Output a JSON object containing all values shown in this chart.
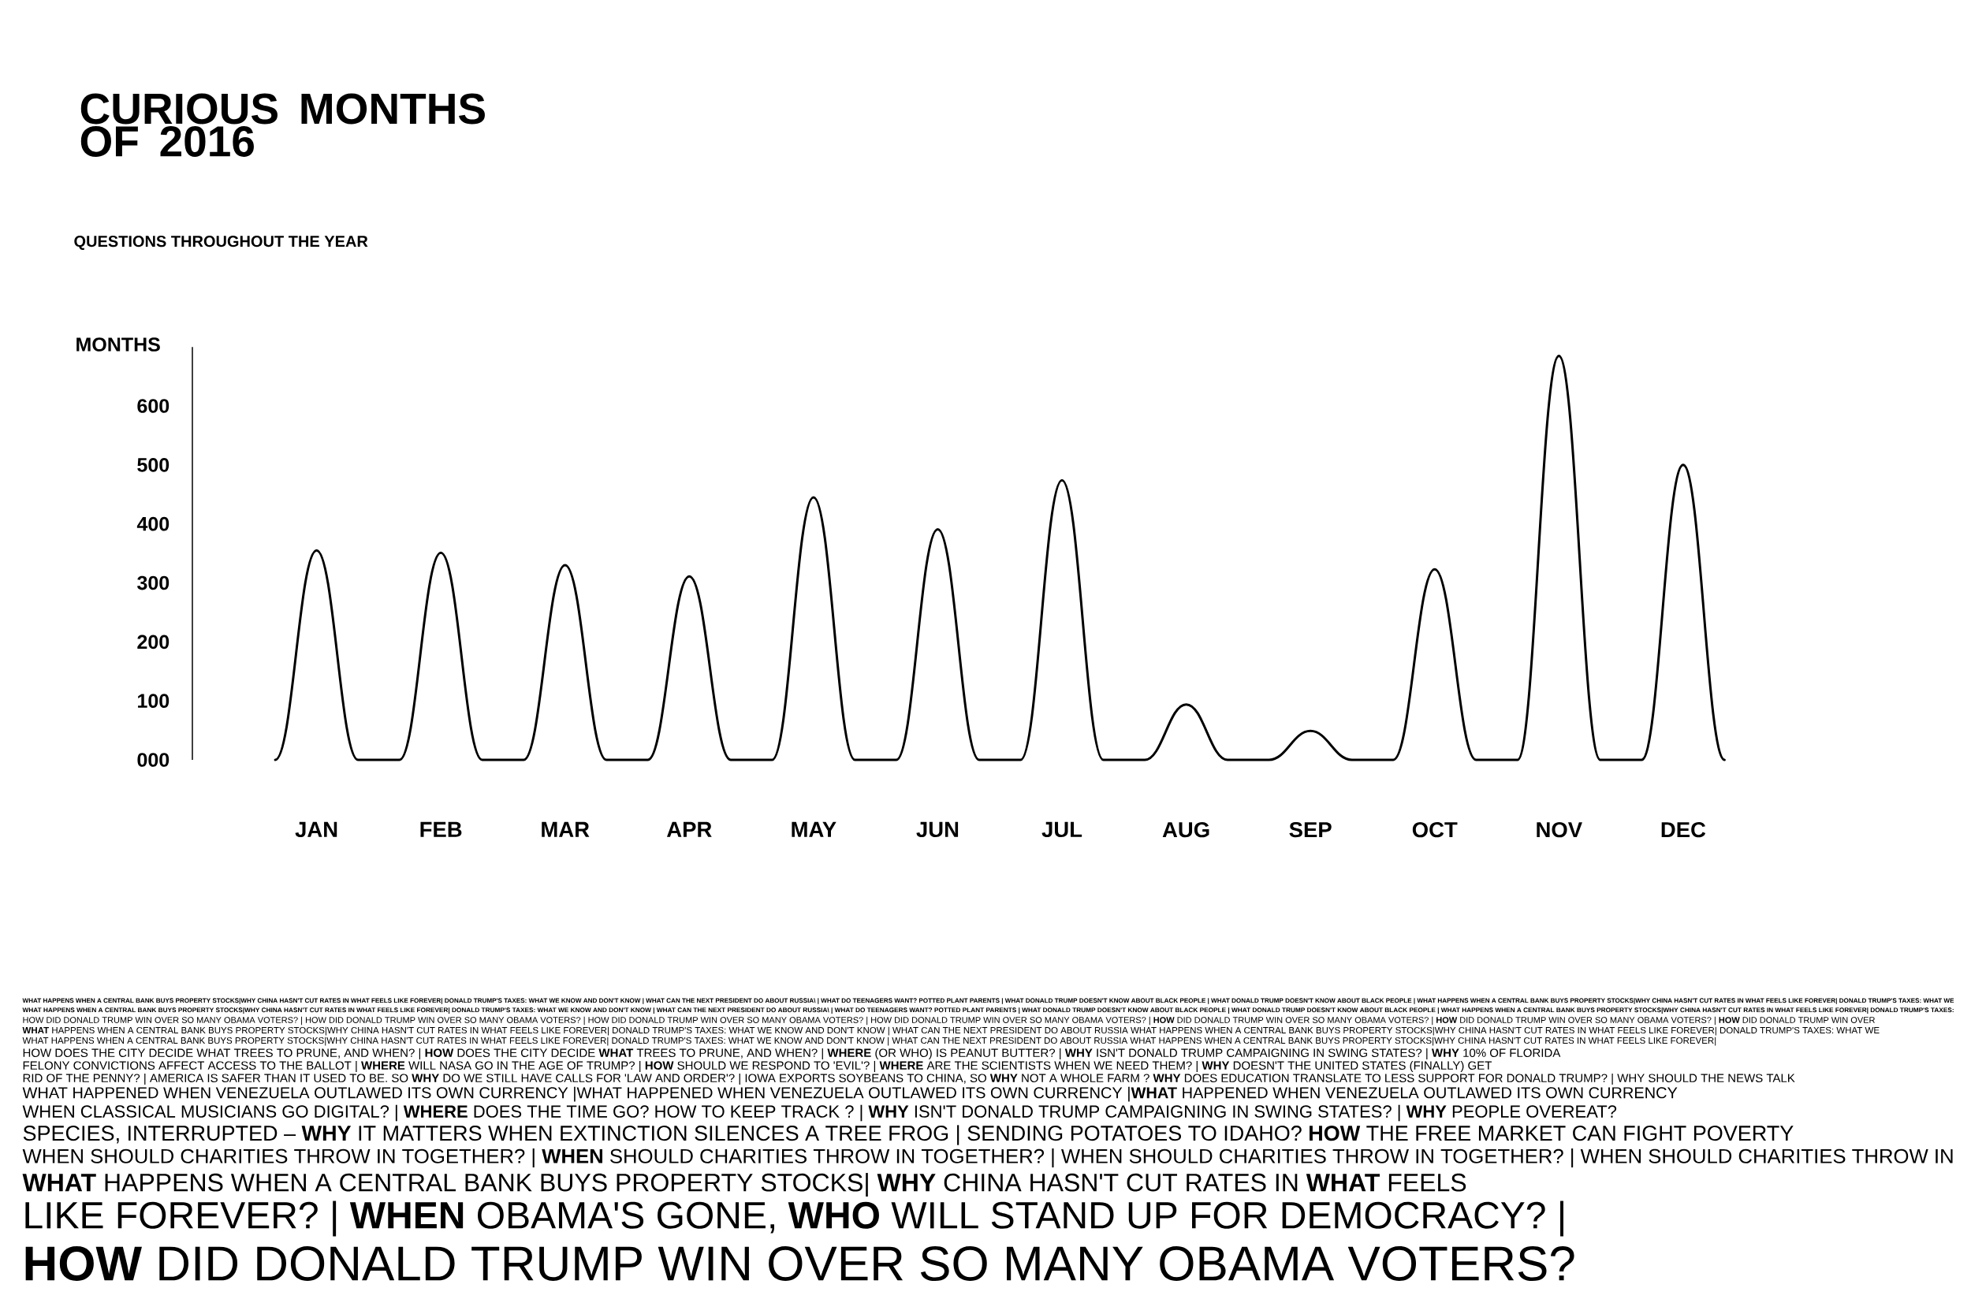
{
  "chart_data": {
    "type": "line",
    "title": "CURIOUS MONTHS OF 2016",
    "subtitle": "QUESTIONS THROUGHOUT THE YEAR",
    "ylabel": "MONTHS",
    "categories": [
      null,
      "JAN",
      null,
      null,
      "FEB",
      null,
      null,
      "MAR",
      null,
      null,
      "APR",
      null,
      null,
      "MAY",
      null,
      null,
      "JUN",
      null,
      null,
      "JUL",
      null,
      null,
      "AUG",
      null,
      null,
      "SEP",
      null,
      null,
      "OCT",
      null,
      null,
      "NOV",
      null,
      null,
      "DEC",
      null
    ],
    "series": [
      {
        "color": "#000000",
        "values": [
          0,
          355,
          0,
          0,
          351,
          0,
          0,
          330,
          0,
          0,
          311,
          0,
          0,
          445,
          0,
          0,
          391,
          0,
          0,
          474,
          0,
          0,
          94,
          0,
          0,
          49,
          0,
          0,
          323,
          0,
          0,
          685,
          0,
          0,
          500,
          0
        ]
      }
    ],
    "ylim": [
      0,
      700
    ],
    "yticks": [
      {
        "value": 0,
        "label": "000"
      },
      100,
      200,
      300,
      400,
      500,
      600
    ],
    "annotations": [
      "**WHAT HAPPENS WHEN A CENTRAL BANK BUYS PROPERTY STOCKS|WHY CHINA HASN'T CUT RATES IN WHAT FEELS LIKE FOREVER| DONALD TRUMP'S TAXES: WHAT WE KNOW AND DON'T KNOW | WHAT CAN THE NEXT PRESIDENT DO ABOUT RUSSIA\\ | WHAT DO TEENAGERS WANT? POTTED PLANT PARENTS | WHAT DONALD TRUMP DOESN'T KNOW ABOUT BLACK PEOPLE | WHAT DONALD TRUMP DOESN'T KNOW ABOUT BLACK PEOPLE | WHAT HAPPENS WHEN A CENTRAL BANK BUYS PROPERTY STOCKS|WHY CHINA HASN'T CUT RATES IN WHAT FEELS LIKE FOREVER| DONALD TRUMP'S TAXES: WHAT WE**",
      "**WHAT HAPPENS WHEN A CENTRAL BANK BUYS PROPERTY STOCKS|WHY CHINA HASN'T CUT RATES IN WHAT FEELS LIKE FOREVER| DONALD TRUMP'S TAXES: WHAT WE KNOW AND DON'T KNOW | WHAT CAN THE NEXT PRESIDENT DO ABOUT RUSSIA\\ | WHAT DO TEENAGERS WANT? POTTED PLANT PARENTS | WHAT DONALD TRUMP DOESN'T KNOW ABOUT BLACK PEOPLE | WHAT DONALD TRUMP DOESN'T KNOW ABOUT BLACK PEOPLE | WHAT HAPPENS WHEN A CENTRAL BANK BUYS PROPERTY STOCKS|WHY CHINA HASN'T CUT RATES IN WHAT FEELS LIKE FOREVER| DONALD TRUMP'S TAXES:**",
      "HOW DID DONALD TRUMP WIN OVER SO MANY OBAMA VOTERS? | HOW DID DONALD TRUMP WIN OVER SO MANY OBAMA VOTERS? | HOW DID DONALD TRUMP WIN OVER SO MANY OBAMA VOTERS? | HOW DID DONALD TRUMP WIN OVER SO MANY OBAMA VOTERS? | **HOW** DID DONALD TRUMP WIN OVER SO MANY OBAMA VOTERS? | **HOW** DID DONALD TRUMP WIN OVER SO MANY OBAMA VOTERS? | **HOW** DID DONALD TRUMP WIN OVER",
      "**WHAT** HAPPENS WHEN A CENTRAL BANK BUYS PROPERTY STOCKS|WHY CHINA HASN'T CUT RATES IN WHAT FEELS LIKE FOREVER| DONALD TRUMP'S TAXES: WHAT WE KNOW AND DON'T KNOW | WHAT CAN THE NEXT PRESIDENT DO ABOUT RUSSIA WHAT HAPPENS WHEN A CENTRAL BANK BUYS PROPERTY STOCKS|WHY CHINA HASN'T CUT RATES IN WHAT FEELS LIKE FOREVER| DONALD TRUMP'S TAXES: WHAT WE",
      "WHAT HAPPENS WHEN A CENTRAL BANK BUYS PROPERTY STOCKS|WHY CHINA HASN'T CUT RATES IN WHAT FEELS LIKE FOREVER| DONALD TRUMP'S TAXES: WHAT WE KNOW AND DON'T KNOW | WHAT CAN THE NEXT PRESIDENT DO ABOUT RUSSIA WHAT HAPPENS WHEN A CENTRAL BANK BUYS PROPERTY STOCKS|WHY CHINA HASN'T CUT RATES IN WHAT FEELS LIKE FOREVER|",
      "HOW DOES THE CITY DECIDE WHAT TREES TO PRUNE, AND WHEN? | **HOW** DOES THE CITY DECIDE **WHAT** TREES TO PRUNE, AND WHEN? | **WHERE** (OR WHO) IS PEANUT BUTTER? | **WHY** ISN'T DONALD TRUMP CAMPAIGNING IN SWING STATES? | **WHY** 10% OF FLORIDA",
      "FELONY CONVICTIONS AFFECT ACCESS TO THE BALLOT | **WHERE** WILL NASA GO IN THE AGE OF TRUMP? | **HOW** SHOULD WE RESPOND TO 'EVIL'? | **WHERE** ARE THE SCIENTISTS WHEN WE NEED THEM? | **WHY** DOESN'T THE UNITED STATES (FINALLY) GET",
      "RID OF THE PENNY? | AMERICA IS SAFER THAN IT USED TO BE. SO **WHY** DO WE STILL HAVE CALLS FOR 'LAW AND ORDER'? | IOWA EXPORTS SOYBEANS TO CHINA, SO **WHY** NOT A WHOLE FARM ? **WHY** DOES EDUCATION TRANSLATE TO LESS SUPPORT FOR DONALD TRUMP? | WHY SHOULD THE NEWS TALK",
      "WHAT HAPPENED WHEN VENEZUELA OUTLAWED ITS OWN CURRENCY |WHAT HAPPENED WHEN VENEZUELA OUTLAWED ITS OWN CURRENCY |**WHAT** HAPPENED WHEN VENEZUELA OUTLAWED ITS OWN CURRENCY",
      "WHEN CLASSICAL MUSICIANS GO DIGITAL? | **WHERE** DOES THE TIME GO? HOW TO KEEP TRACK ? | **WHY** ISN'T DONALD TRUMP CAMPAIGNING IN SWING STATES? | **WHY** PEOPLE OVEREAT?",
      "SPECIES, INTERRUPTED – **WHY** IT MATTERS WHEN EXTINCTION SILENCES A TREE FROG | SENDING POTATOES TO IDAHO? **HOW** THE FREE MARKET CAN FIGHT POVERTY",
      "WHEN SHOULD CHARITIES THROW IN TOGETHER? | **WHEN** SHOULD CHARITIES THROW IN TOGETHER? | WHEN SHOULD CHARITIES THROW IN TOGETHER? | WHEN SHOULD CHARITIES THROW IN",
      "**WHAT** HAPPENS WHEN A CENTRAL BANK BUYS PROPERTY STOCKS| **WHY** CHINA HASN'T CUT RATES IN **WHAT** FEELS",
      "LIKE FOREVER? | **WHEN** OBAMA'S GONE, **WHO** WILL STAND UP FOR DEMOCRACY? |",
      "**HOW** DID DONALD TRUMP WIN OVER SO MANY OBAMA VOTERS?"
    ]
  }
}
